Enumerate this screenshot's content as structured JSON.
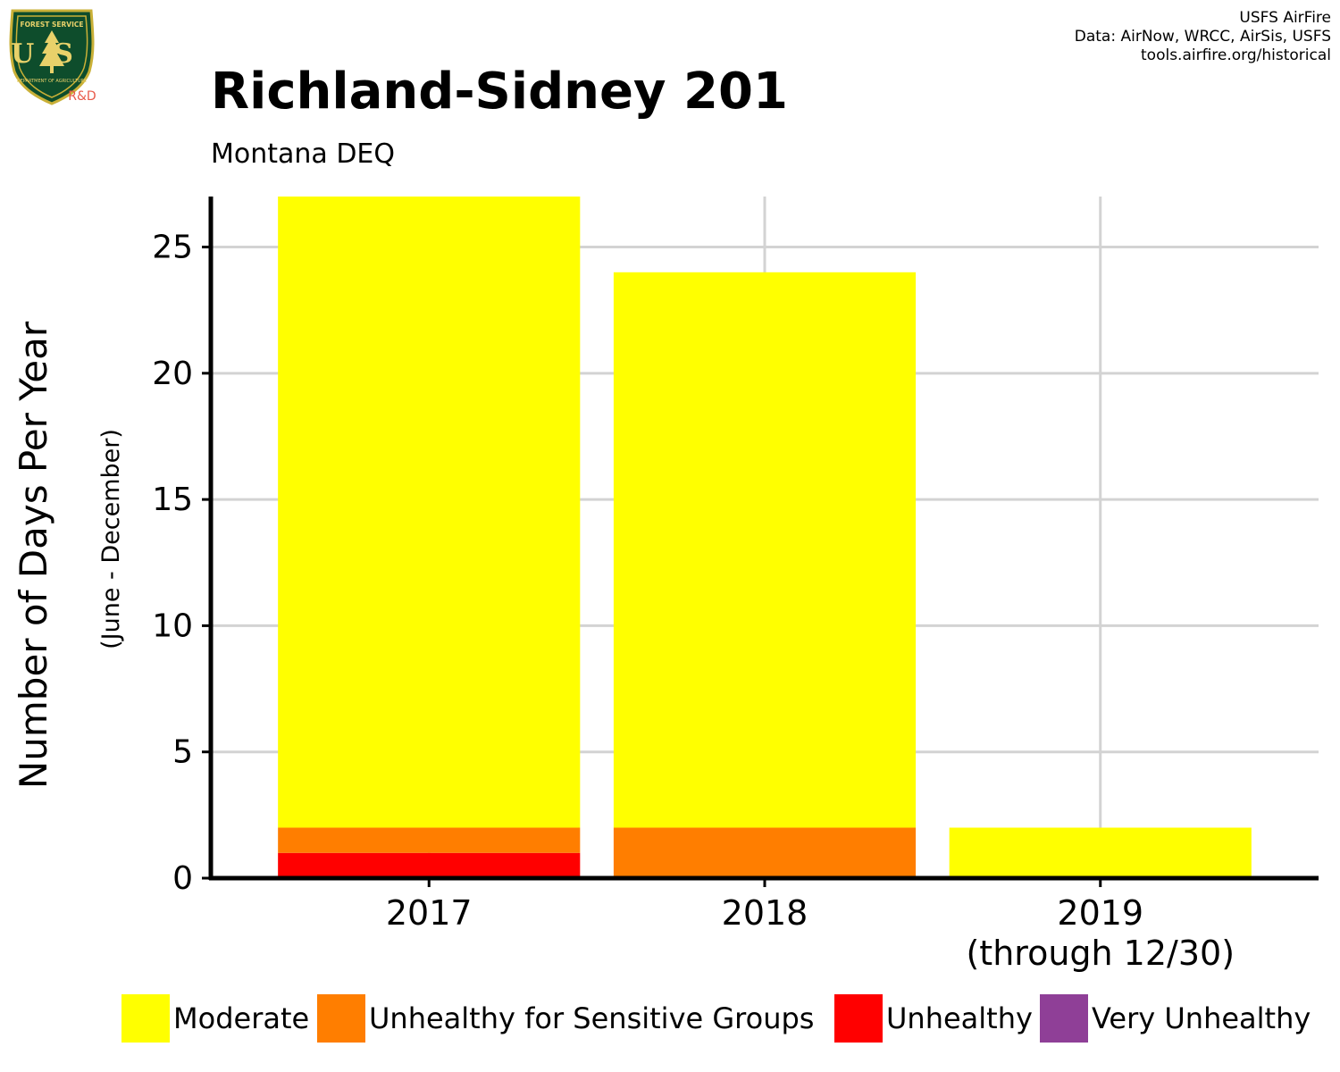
{
  "logo": {
    "top_text": "FOREST SERVICE",
    "us_text": "US",
    "bottom_text": "DEPARTMENT OF AGRICULTURE",
    "rd_text": "R&D"
  },
  "credits": [
    "USFS AirFire",
    "Data: AirNow, WRCC, AirSis, USFS",
    "tools.airfire.org/historical"
  ],
  "chart_data": {
    "type": "bar",
    "stacked": true,
    "title": "Richland-Sidney 201",
    "subtitle": "Montana DEQ",
    "ylabel": "Number of Days Per Year",
    "ylabel_sub": "(June - December)",
    "xlabel": "",
    "ylim": [
      0,
      27
    ],
    "yticks": [
      0,
      5,
      10,
      15,
      20,
      25
    ],
    "grid": true,
    "legend_position": "bottom",
    "categories": [
      "2017",
      "2018",
      "2019"
    ],
    "category_sublabels": [
      "",
      "",
      "(through 12/30)"
    ],
    "series": [
      {
        "name": "Unhealthy",
        "color": "#ff0000",
        "values": [
          1,
          0,
          0
        ]
      },
      {
        "name": "Unhealthy for Sensitive Groups",
        "color": "#ff7e00",
        "values": [
          1,
          2,
          0
        ]
      },
      {
        "name": "Moderate",
        "color": "#ffff00",
        "values": [
          25,
          22,
          2
        ]
      },
      {
        "name": "Very Unhealthy",
        "color": "#8f3f97",
        "values": [
          0,
          0,
          0
        ]
      }
    ],
    "legend": [
      {
        "name": "Moderate",
        "color": "#ffff00"
      },
      {
        "name": "Unhealthy for Sensitive Groups",
        "color": "#ff7e00"
      },
      {
        "name": "Unhealthy",
        "color": "#ff0000"
      },
      {
        "name": "Very Unhealthy",
        "color": "#8f3f97"
      }
    ]
  }
}
